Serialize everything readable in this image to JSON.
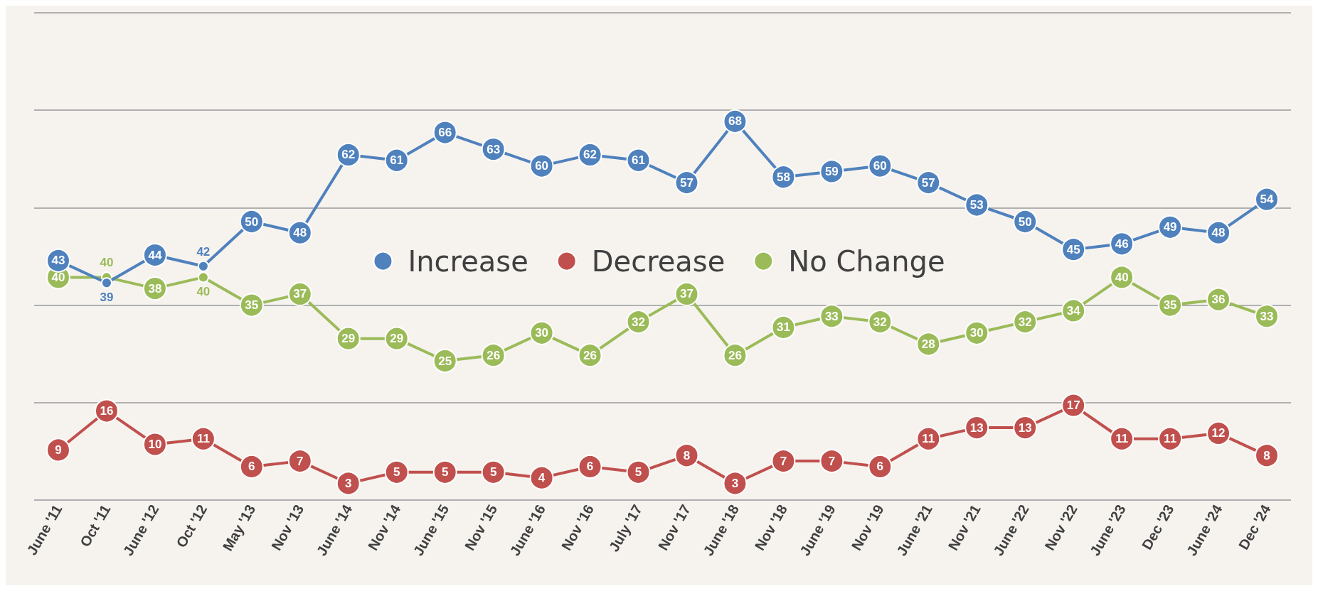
{
  "chart_data": {
    "type": "line",
    "categories": [
      "June '11",
      "Oct '11",
      "June '12",
      "Oct '12",
      "May '13",
      "Nov '13",
      "June '14",
      "Nov '14",
      "June '15",
      "Nov '15",
      "June '16",
      "Nov '16",
      "July '17",
      "Nov '17",
      "June '18",
      "Nov '18",
      "June '19",
      "Nov '19",
      "June '21",
      "Nov '21",
      "June '22",
      "Nov '22",
      "June '23",
      "Dec '23",
      "June '24",
      "Dec '24"
    ],
    "series": [
      {
        "name": "Increase",
        "color": "#4f81bd",
        "values": [
          43,
          39,
          44,
          42,
          50,
          48,
          62,
          61,
          66,
          63,
          60,
          62,
          61,
          57,
          68,
          58,
          59,
          60,
          57,
          53,
          50,
          45,
          46,
          49,
          48,
          54
        ]
      },
      {
        "name": "Decrease",
        "color": "#c0504d",
        "values": [
          9,
          16,
          10,
          11,
          6,
          7,
          3,
          5,
          5,
          5,
          4,
          6,
          5,
          8,
          3,
          7,
          7,
          6,
          11,
          13,
          13,
          17,
          11,
          11,
          12,
          8
        ]
      },
      {
        "name": "No Change",
        "color": "#9bbb59",
        "values": [
          40,
          40,
          38,
          40,
          35,
          37,
          29,
          29,
          25,
          26,
          30,
          26,
          32,
          37,
          26,
          31,
          33,
          32,
          28,
          30,
          32,
          34,
          40,
          35,
          36,
          33
        ]
      }
    ],
    "ylim": [
      0,
      87.5
    ],
    "yticks": [
      {
        "value": 0,
        "label": null
      },
      {
        "value": 17.5,
        "label": null
      },
      {
        "value": 35,
        "label": null
      },
      {
        "value": 52.5,
        "label": null
      },
      {
        "value": 70,
        "label": null
      },
      {
        "value": 87.5,
        "label": null
      }
    ],
    "tick_labels": "x",
    "grid": "y",
    "legend": "center",
    "marker": "circle",
    "line_style": "solid",
    "data_labels": true
  }
}
